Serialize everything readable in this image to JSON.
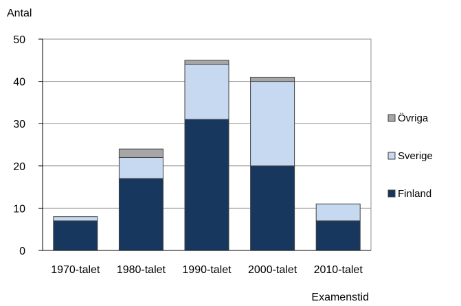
{
  "chart_data": {
    "type": "bar",
    "stacked": true,
    "ylabel": "Antal",
    "xlabel": "Examenstid",
    "ylim": [
      0,
      50
    ],
    "yticks": [
      0,
      10,
      20,
      30,
      40,
      50
    ],
    "grid": true,
    "legend_position": "right",
    "categories": [
      "1970-talet",
      "1980-talet",
      "1990-talet",
      "2000-talet",
      "2010-talet"
    ],
    "series": [
      {
        "name": "Finland",
        "color": "#17375e",
        "values": [
          7,
          17,
          31,
          20,
          7
        ]
      },
      {
        "name": "Sverige",
        "color": "#c6d9f1",
        "values": [
          1,
          5,
          13,
          20,
          4
        ]
      },
      {
        "name": "Övriga",
        "color": "#a6a6a6",
        "values": [
          0,
          2,
          1,
          1,
          0
        ]
      }
    ],
    "legend_order": [
      "Övriga",
      "Sverige",
      "Finland"
    ]
  }
}
